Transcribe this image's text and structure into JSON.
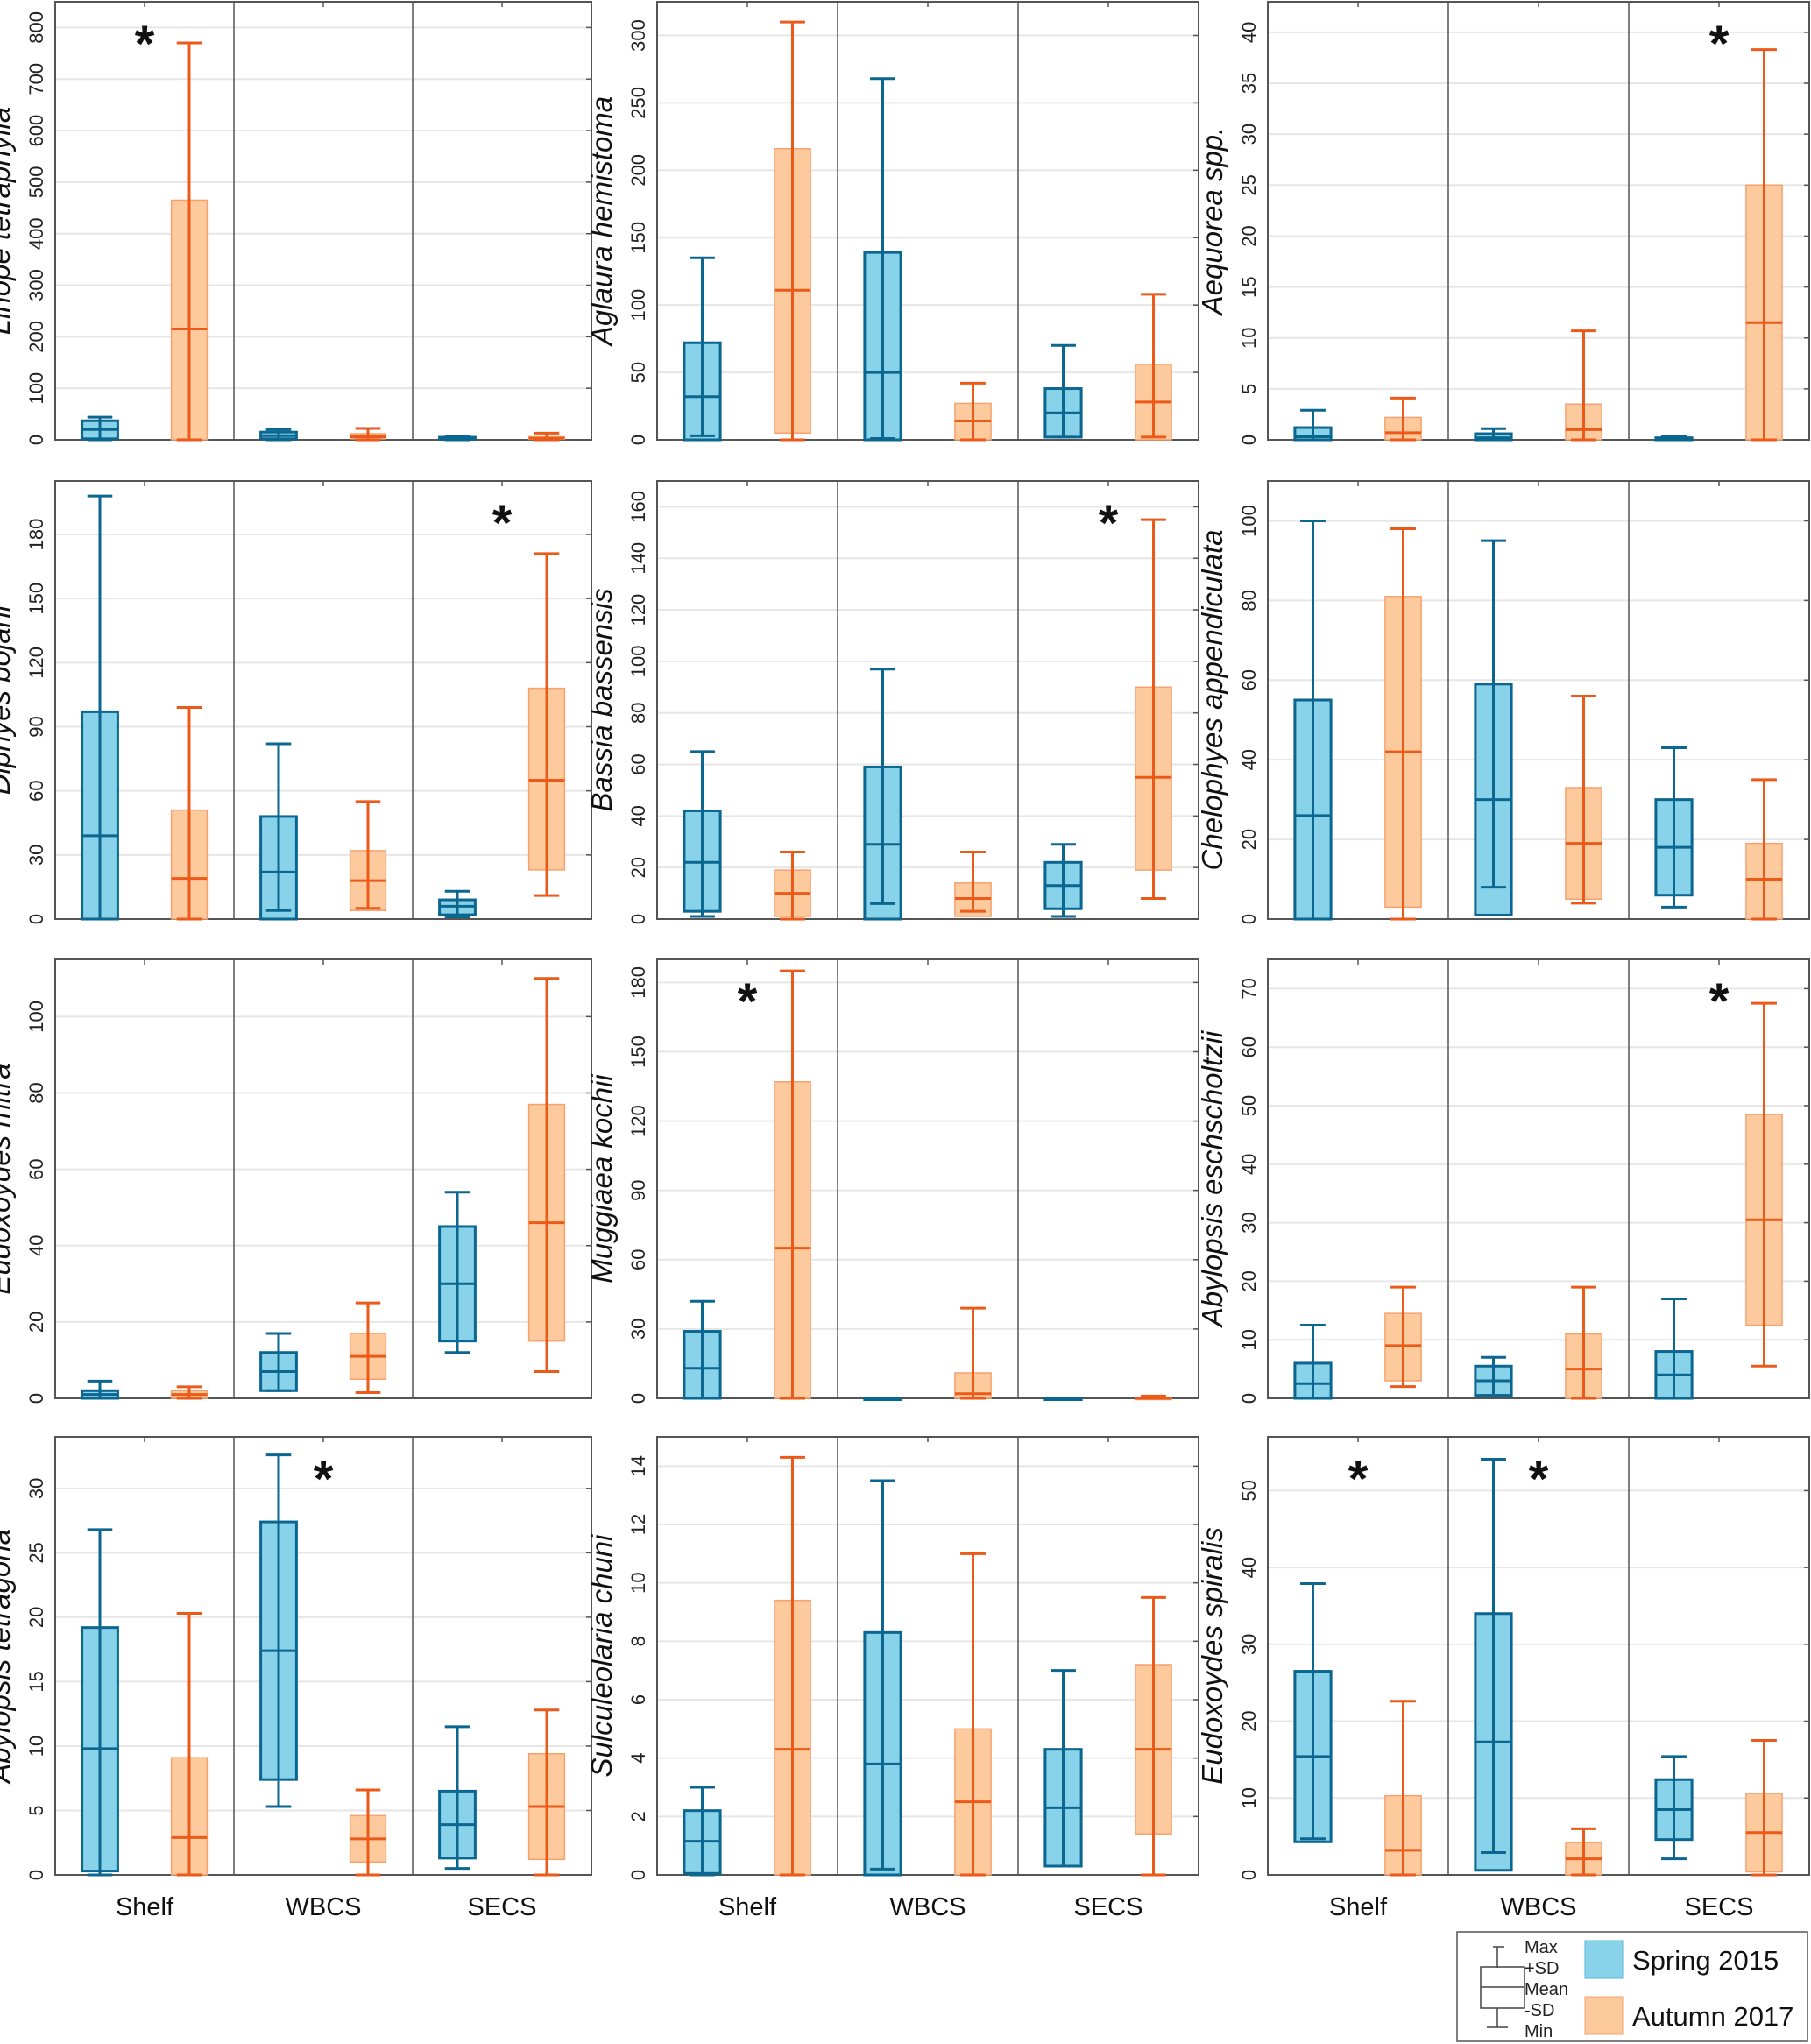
{
  "chart_data": {
    "type": "box",
    "categories": [
      "Shelf",
      "WBCS",
      "SECS"
    ],
    "series_names": [
      "Spring 2015",
      "Autumn 2017"
    ],
    "colors": {
      "spring_fill": "#89d3ea",
      "spring_stroke": "#0b6690",
      "autumn_fill": "#fdca9e",
      "autumn_stroke": "#ec5a1a",
      "autumn_box_edge": "#f4a26f",
      "grid": "#e6e6e6",
      "axis": "#555555"
    },
    "legend": {
      "placement": "bottom-right",
      "stats_labels": [
        "Max",
        "+SD",
        "Mean",
        "-SD",
        "Min"
      ],
      "entries": [
        "Spring 2015",
        "Autumn 2017"
      ]
    },
    "value_order": [
      "min",
      "minus_sd",
      "mean",
      "plus_sd",
      "max"
    ],
    "panels": [
      {
        "ylabel": "Liriope tetraphylla",
        "ylim": [
          0,
          850
        ],
        "yticks": [
          0,
          100,
          200,
          300,
          400,
          500,
          600,
          700,
          800
        ],
        "significant": [
          "Shelf"
        ],
        "spring": [
          [
            0,
            2,
            20,
            37,
            44
          ],
          [
            0,
            2,
            8,
            15,
            20
          ],
          [
            0,
            1,
            3,
            5,
            6
          ]
        ],
        "autumn": [
          [
            0,
            0,
            215,
            465,
            770
          ],
          [
            0,
            2,
            6,
            12,
            22
          ],
          [
            0,
            1,
            3,
            6,
            13
          ]
        ]
      },
      {
        "ylabel": "Aglaura hemistoma",
        "ylim": [
          0,
          325
        ],
        "yticks": [
          0,
          50,
          100,
          150,
          200,
          250,
          300
        ],
        "significant": [],
        "spring": [
          [
            3,
            0,
            32,
            72,
            135
          ],
          [
            1,
            0,
            50,
            139,
            268
          ],
          [
            2,
            2,
            20,
            38,
            70
          ]
        ],
        "autumn": [
          [
            0,
            5,
            111,
            216,
            310
          ],
          [
            0,
            0,
            14,
            27,
            42
          ],
          [
            2,
            0,
            28,
            56,
            108
          ]
        ]
      },
      {
        "ylabel": "Aequorea spp.",
        "ylim": [
          0,
          43
        ],
        "yticks": [
          0,
          5,
          10,
          15,
          20,
          25,
          30,
          35,
          40
        ],
        "significant": [
          "SECS"
        ],
        "spring": [
          [
            0,
            0,
            0.3,
            1.2,
            2.9
          ],
          [
            0,
            0,
            0.2,
            0.6,
            1.1
          ],
          [
            0,
            0,
            0.1,
            0.2,
            0.3
          ]
        ],
        "autumn": [
          [
            0,
            0,
            0.7,
            2.2,
            4.1
          ],
          [
            0,
            0,
            1,
            3.5,
            10.7
          ],
          [
            0,
            0,
            11.5,
            25,
            38.3
          ]
        ]
      },
      {
        "ylabel": "Diphyes bojani",
        "ylim": [
          0,
          205
        ],
        "yticks": [
          0,
          30,
          60,
          90,
          120,
          150,
          180
        ],
        "significant": [
          "SECS"
        ],
        "spring": [
          [
            0,
            0,
            39,
            97,
            198
          ],
          [
            4,
            0,
            22,
            48,
            82
          ],
          [
            1,
            2,
            6,
            9,
            13
          ]
        ],
        "autumn": [
          [
            0,
            0,
            19,
            51,
            99
          ],
          [
            5,
            4,
            18,
            32,
            55
          ],
          [
            11,
            23,
            65,
            108,
            171
          ]
        ]
      },
      {
        "ylabel": "Bassia bassensis",
        "ylim": [
          0,
          170
        ],
        "yticks": [
          0,
          20,
          40,
          60,
          80,
          100,
          120,
          140,
          160
        ],
        "significant": [
          "SECS"
        ],
        "spring": [
          [
            1,
            3,
            22,
            42,
            65
          ],
          [
            6,
            0,
            29,
            59,
            97
          ],
          [
            1,
            4,
            13,
            22,
            29
          ]
        ],
        "autumn": [
          [
            0,
            1,
            10,
            19,
            26
          ],
          [
            3,
            1,
            8,
            14,
            26
          ],
          [
            8,
            19,
            55,
            90,
            155
          ]
        ]
      },
      {
        "ylabel": "Chelophyes appendiculata",
        "ylim": [
          0,
          110
        ],
        "yticks": [
          0,
          20,
          40,
          60,
          80,
          100
        ],
        "significant": [],
        "spring": [
          [
            0,
            0,
            26,
            55,
            100
          ],
          [
            8,
            1,
            30,
            59,
            95
          ],
          [
            3,
            6,
            18,
            30,
            43
          ]
        ],
        "autumn": [
          [
            0,
            3,
            42,
            81,
            98
          ],
          [
            4,
            5,
            19,
            33,
            56
          ],
          [
            0,
            0,
            10,
            19,
            35
          ]
        ]
      },
      {
        "ylabel": "Eudoxoydes mitra",
        "ylim": [
          0,
          115
        ],
        "yticks": [
          0,
          20,
          40,
          60,
          80,
          100
        ],
        "significant": [],
        "spring": [
          [
            0,
            0,
            1,
            2,
            4.5
          ],
          [
            2,
            2,
            7,
            12,
            17
          ],
          [
            12,
            15,
            30,
            45,
            54
          ]
        ],
        "autumn": [
          [
            0,
            0,
            1,
            2,
            3
          ],
          [
            1.5,
            5,
            11,
            17,
            25
          ],
          [
            7,
            15,
            46,
            77,
            110
          ]
        ]
      },
      {
        "ylabel": "Muggiaea kochii",
        "ylim": [
          0,
          190
        ],
        "yticks": [
          0,
          30,
          60,
          90,
          120,
          150,
          180
        ],
        "significant": [
          "Shelf"
        ],
        "spring": [
          [
            0,
            0,
            13,
            29,
            42
          ],
          [
            0,
            0,
            0,
            0,
            0
          ],
          [
            0,
            0,
            0,
            0,
            0
          ]
        ],
        "autumn": [
          [
            0,
            0,
            65,
            137,
            185
          ],
          [
            0,
            0,
            2,
            11,
            39
          ],
          [
            0,
            0,
            0,
            0,
            1
          ]
        ]
      },
      {
        "ylabel": "Abylopsis eschscholtzii",
        "ylim": [
          0,
          75
        ],
        "yticks": [
          0,
          10,
          20,
          30,
          40,
          50,
          60,
          70
        ],
        "significant": [
          "SECS"
        ],
        "spring": [
          [
            0,
            0,
            2.5,
            6,
            12.5
          ],
          [
            0.5,
            0.5,
            3,
            5.5,
            7
          ],
          [
            0,
            0,
            4,
            8,
            17
          ]
        ],
        "autumn": [
          [
            2,
            3,
            9,
            14.5,
            19
          ],
          [
            0,
            0,
            5,
            11,
            19
          ],
          [
            5.5,
            12.5,
            30.5,
            48.5,
            67.5
          ]
        ]
      },
      {
        "ylabel": "Abylopsis tetragona",
        "ylim": [
          0,
          34
        ],
        "yticks": [
          0,
          5,
          10,
          15,
          20,
          25,
          30
        ],
        "significant": [
          "WBCS"
        ],
        "spring": [
          [
            0,
            0.3,
            9.8,
            19.2,
            26.8
          ],
          [
            5.3,
            7.4,
            17.4,
            27.4,
            32.6
          ],
          [
            0.5,
            1.3,
            3.9,
            6.5,
            11.5
          ]
        ],
        "autumn": [
          [
            0,
            0,
            2.9,
            9.1,
            20.3
          ],
          [
            0,
            1,
            2.8,
            4.6,
            6.6
          ],
          [
            0,
            1.2,
            5.3,
            9.4,
            12.8
          ]
        ]
      },
      {
        "ylabel": "Sulculeolaria chuni",
        "ylim": [
          0,
          15
        ],
        "yticks": [
          0,
          2,
          4,
          6,
          8,
          10,
          12,
          14
        ],
        "significant": [],
        "spring": [
          [
            0,
            0.05,
            1.15,
            2.2,
            3
          ],
          [
            0.2,
            0,
            3.8,
            8.3,
            13.5
          ],
          [
            0.3,
            0.3,
            2.3,
            4.3,
            7
          ]
        ],
        "autumn": [
          [
            0,
            0,
            4.3,
            9.4,
            14.3
          ],
          [
            0,
            0,
            2.5,
            5,
            11
          ],
          [
            0,
            1.4,
            4.3,
            7.2,
            9.5
          ]
        ]
      },
      {
        "ylabel": "Eudoxoydes spiralis",
        "ylim": [
          0,
          57
        ],
        "yticks": [
          0,
          10,
          20,
          30,
          40,
          50
        ],
        "significant": [
          "Shelf",
          "WBCS"
        ],
        "spring": [
          [
            4.7,
            4.3,
            15.4,
            26.5,
            37.9
          ],
          [
            2.9,
            0.6,
            17.3,
            34,
            54.1
          ],
          [
            2.1,
            4.6,
            8.5,
            12.4,
            15.4
          ]
        ],
        "autumn": [
          [
            0,
            0,
            3.2,
            10.3,
            22.6
          ],
          [
            0,
            0,
            2.1,
            4.2,
            6
          ],
          [
            0,
            0.4,
            5.5,
            10.6,
            17.5
          ]
        ]
      }
    ],
    "significance_marker": "*"
  }
}
